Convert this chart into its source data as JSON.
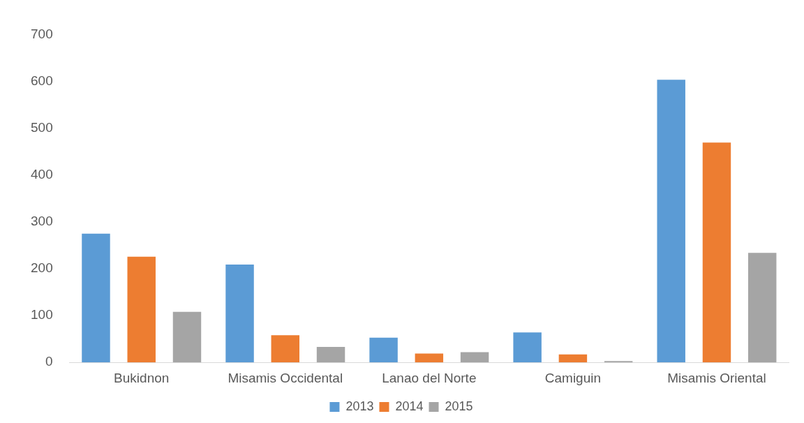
{
  "chart_data": {
    "type": "bar",
    "categories": [
      "Bukidnon",
      "Misamis Occidental",
      "Lanao del Norte",
      "Camiguin",
      "Misamis Oriental"
    ],
    "series": [
      {
        "name": "2013",
        "color": "#5b9bd5",
        "values": [
          275,
          209,
          53,
          64,
          604
        ]
      },
      {
        "name": "2014",
        "color": "#ed7d31",
        "values": [
          226,
          58,
          19,
          17,
          470
        ]
      },
      {
        "name": "2015",
        "color": "#a5a5a5",
        "values": [
          108,
          33,
          22,
          3,
          234
        ]
      }
    ],
    "ylim": [
      0,
      700
    ],
    "yticks": [
      0,
      100,
      200,
      300,
      400,
      500,
      600,
      700
    ],
    "grid": false,
    "legend": "bottom"
  }
}
